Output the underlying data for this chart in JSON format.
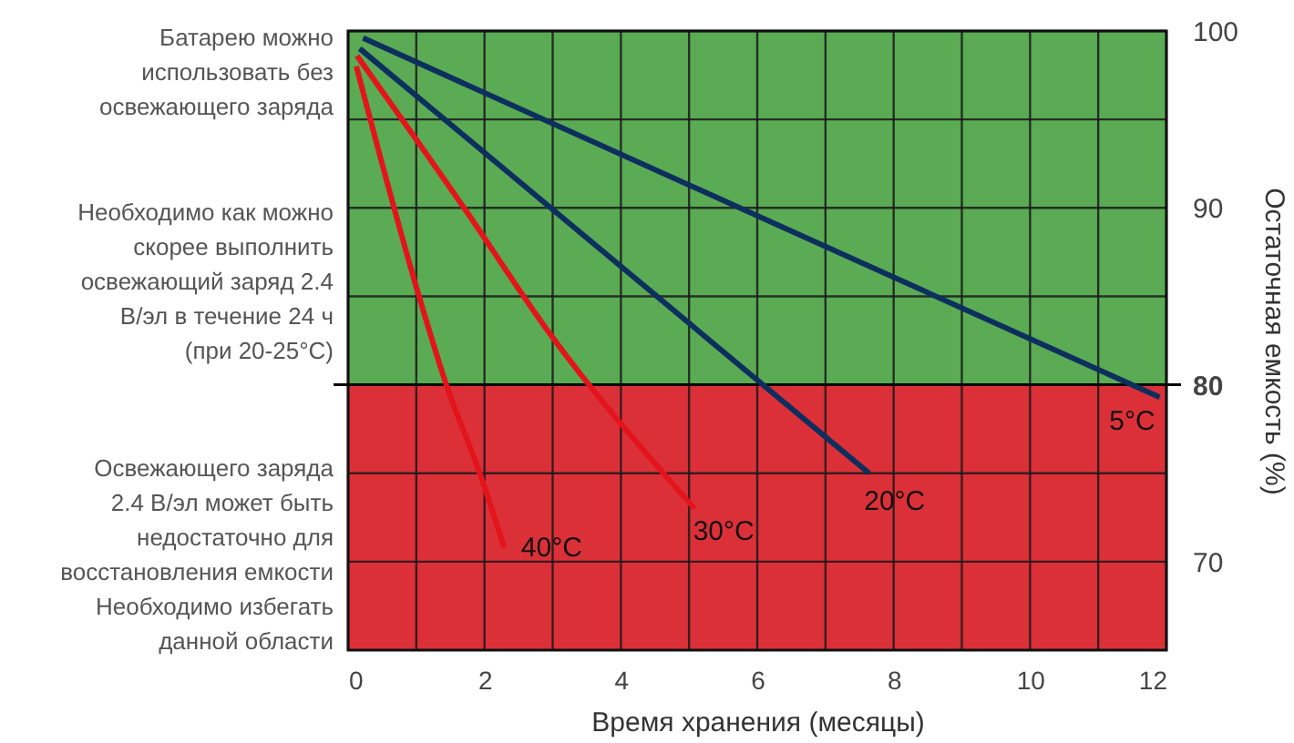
{
  "chart_data": {
    "type": "line",
    "xlabel": "Время хранения (месяцы)",
    "ylabel": "Остаточная емкость (%)",
    "annotations": [
      "Батарею можно\nиспользовать без\nосвежающего заряда",
      "Необходимо как можно\nскорее выполнить\nосвежающий заряд 2.4\nВ/эл в течение 24 ч\n(при 20-25°C)",
      "Освежающего заряда\n2.4 В/эл может быть\nнедостаточно для\nвосстановления емкости\nНеобходимо избегать\nданной области"
    ],
    "series": [
      {
        "name": "5°C",
        "color": "#0d2f5e",
        "x": [
          0.22,
          11.9
        ],
        "values": [
          99.6,
          79.3
        ]
      },
      {
        "name": "20°C",
        "color": "#0d2f5e",
        "x": [
          0.17,
          7.64
        ],
        "values": [
          99.0,
          75.0
        ]
      },
      {
        "name": "30°C",
        "color": "#e3141b",
        "x": [
          0.13,
          1.7,
          2.9,
          5.08
        ],
        "values": [
          98.6,
          90,
          83.2,
          73.0
        ]
      },
      {
        "name": "40°C",
        "color": "#e3141b",
        "x": [
          0.12,
          1.04,
          1.44,
          1.93,
          2.29
        ],
        "values": [
          98.0,
          85,
          80,
          75,
          70.8
        ]
      }
    ],
    "xlim": [
      0,
      12
    ],
    "ylim": [
      65,
      100
    ],
    "xticks": [
      0,
      {
        "value": 1,
        "label": null
      },
      2,
      {
        "value": 3,
        "label": null
      },
      4,
      {
        "value": 5,
        "label": null
      },
      6,
      {
        "value": 7,
        "label": null
      },
      8,
      {
        "value": 9,
        "label": null
      },
      10,
      {
        "value": 11,
        "label": null
      },
      12
    ],
    "yticks": [
      70,
      {
        "value": 75,
        "label": null
      },
      80,
      {
        "value": 85,
        "label": null
      },
      90,
      {
        "value": 95,
        "label": null
      },
      100
    ],
    "grid": true,
    "bands": [
      {
        "axis": "y",
        "from": 80,
        "to": 100,
        "color": "#5aab54"
      },
      {
        "axis": "y",
        "from": 65,
        "to": 80,
        "color": "#dc3039"
      }
    ],
    "ref_lines": [
      {
        "axis": "y",
        "value": 80,
        "color": "#000000"
      }
    ]
  }
}
